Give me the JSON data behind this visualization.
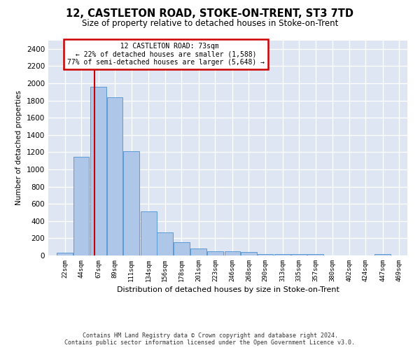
{
  "title": "12, CASTLETON ROAD, STOKE-ON-TRENT, ST3 7TD",
  "subtitle": "Size of property relative to detached houses in Stoke-on-Trent",
  "xlabel": "Distribution of detached houses by size in Stoke-on-Trent",
  "ylabel": "Number of detached properties",
  "footer1": "Contains HM Land Registry data © Crown copyright and database right 2024.",
  "footer2": "Contains public sector information licensed under the Open Government Licence v3.0.",
  "annotation_title": "12 CASTLETON ROAD: 73sqm",
  "annotation_line1": "← 22% of detached houses are smaller (1,588)",
  "annotation_line2": "77% of semi-detached houses are larger (5,648) →",
  "property_sqm": 73,
  "bar_edges": [
    22,
    44,
    67,
    89,
    111,
    134,
    156,
    178,
    201,
    223,
    246,
    268,
    290,
    313,
    335,
    357,
    380,
    402,
    424,
    447,
    469
  ],
  "bar_heights": [
    30,
    1150,
    1960,
    1840,
    1210,
    510,
    265,
    155,
    80,
    50,
    45,
    40,
    20,
    20,
    15,
    20,
    0,
    0,
    0,
    20,
    0
  ],
  "bar_color": "#aec6e8",
  "bar_edge_color": "#5b9bd5",
  "line_color": "#cc0000",
  "box_edge_color": "#cc0000",
  "bg_color": "#dde6f2",
  "grid_color": "#ffffff",
  "ylim": [
    0,
    2500
  ],
  "yticks": [
    0,
    200,
    400,
    600,
    800,
    1000,
    1200,
    1400,
    1600,
    1800,
    2000,
    2200,
    2400
  ],
  "xlim_min": 11,
  "xlim_max": 491
}
